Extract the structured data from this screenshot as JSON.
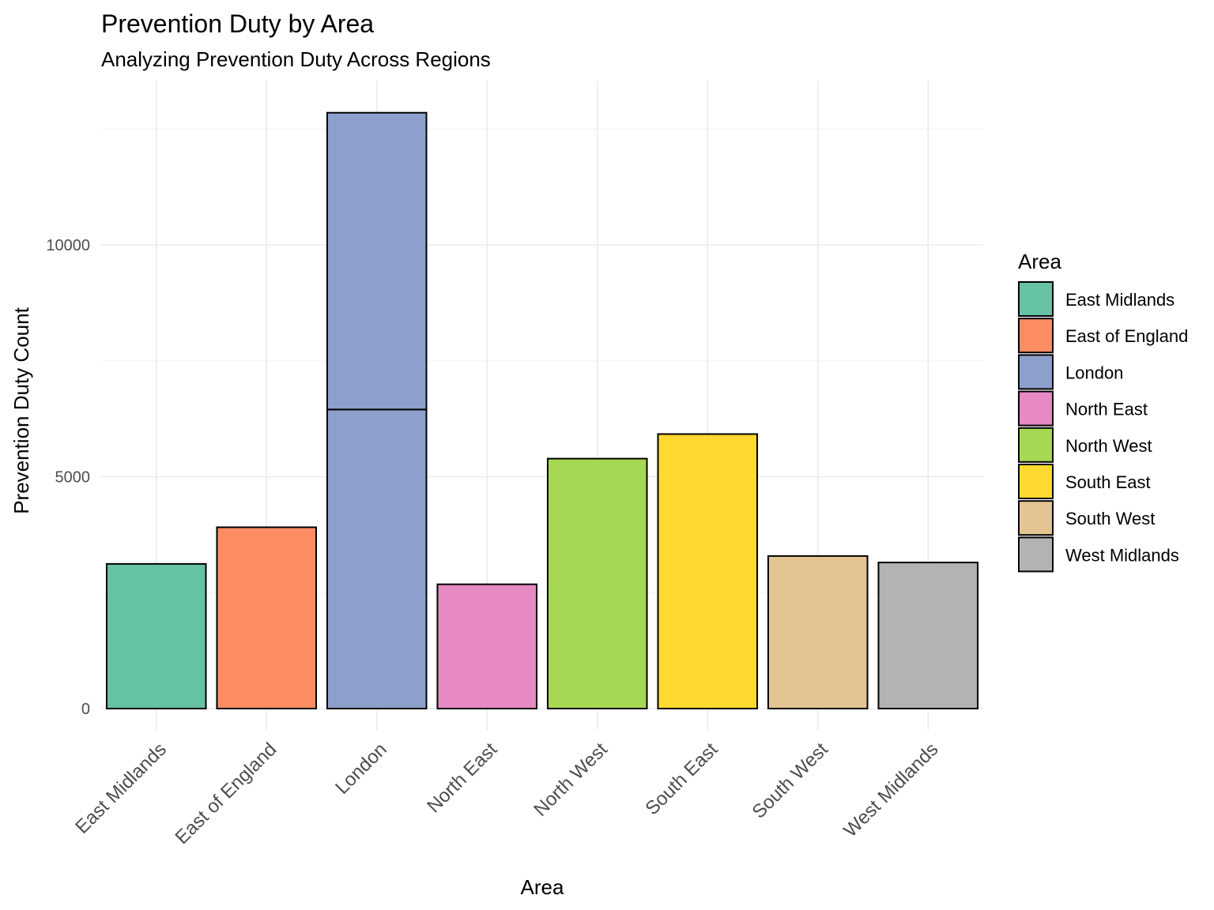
{
  "chart_data": {
    "type": "bar",
    "title": "Prevention Duty by Area",
    "subtitle": "Analyzing Prevention Duty Across Regions",
    "xlabel": "Area",
    "ylabel": "Prevention Duty Count",
    "ylim": [
      -450,
      13500
    ],
    "yticks": [
      0,
      5000,
      10000
    ],
    "grid": true,
    "legend": {
      "title": "Area",
      "position": "right"
    },
    "categories": [
      "East Midlands",
      "East of England",
      "London",
      "North East",
      "North West",
      "South East",
      "South West",
      "West Midlands"
    ],
    "colors": [
      "#66C2A5",
      "#FC8D62",
      "#8DA0CB",
      "#E78AC3",
      "#A6D854",
      "#FFD92F",
      "#E5C494",
      "#B3B3B3"
    ],
    "segments": [
      [
        3120
      ],
      [
        3910
      ],
      [
        6450,
        6400
      ],
      [
        2680
      ],
      [
        5390
      ],
      [
        5920
      ],
      [
        3290
      ],
      [
        3150
      ]
    ],
    "values": [
      3120,
      3910,
      12850,
      2680,
      5390,
      5920,
      3290,
      3150
    ]
  }
}
